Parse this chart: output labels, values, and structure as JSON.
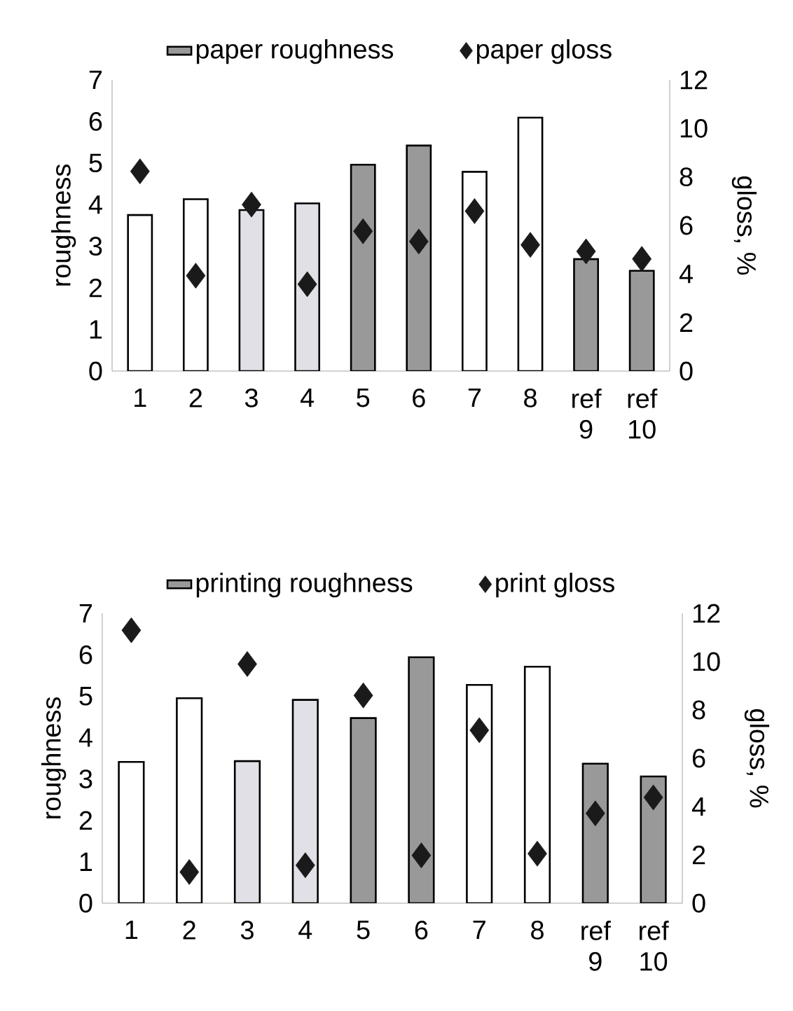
{
  "chart_data": [
    {
      "type": "bar",
      "categories": [
        "1",
        "2",
        "3",
        "4",
        "5",
        "6",
        "7",
        "8",
        "ref 9",
        "ref 10"
      ],
      "ylabel": "roughness",
      "y2label": "gloss, %",
      "ylim": [
        0,
        7
      ],
      "yticks": [
        0,
        1,
        2,
        3,
        4,
        5,
        6,
        7
      ],
      "y2lim": [
        0,
        12
      ],
      "y2ticks": [
        0,
        2,
        4,
        6,
        8,
        10,
        12
      ],
      "legend": "top",
      "series": [
        {
          "name": "paper roughness",
          "type": "bar",
          "values": [
            3.75,
            4.13,
            3.87,
            4.03,
            4.96,
            5.42,
            4.79,
            6.09,
            2.69,
            2.41
          ],
          "colors": [
            "#ffffff",
            "#ffffff",
            "#e0e0e6",
            "#e0e0e6",
            "#999999",
            "#999999",
            "#ffffff",
            "#ffffff",
            "#999999",
            "#999999"
          ]
        },
        {
          "name": "paper gloss",
          "type": "scatter",
          "axis": "y2",
          "marker": "diamond",
          "color": "#1a1a1a",
          "values": [
            8.23,
            3.93,
            6.86,
            3.58,
            5.76,
            5.34,
            6.59,
            5.2,
            4.93,
            4.62
          ]
        }
      ]
    },
    {
      "type": "bar",
      "categories": [
        "1",
        "2",
        "3",
        "4",
        "5",
        "6",
        "7",
        "8",
        "ref 9",
        "ref 10"
      ],
      "ylabel": "roughness",
      "y2label": "gloss, %",
      "ylim": [
        0,
        7
      ],
      "yticks": [
        0,
        1,
        2,
        3,
        4,
        5,
        6,
        7
      ],
      "y2lim": [
        0,
        12
      ],
      "y2ticks": [
        0,
        2,
        4,
        6,
        8,
        10,
        12
      ],
      "legend": "top",
      "series": [
        {
          "name": "printing roughness",
          "type": "bar",
          "values": [
            3.41,
            4.95,
            3.43,
            4.91,
            4.47,
            5.94,
            5.27,
            5.71,
            3.37,
            3.06
          ],
          "colors": [
            "#ffffff",
            "#ffffff",
            "#e0e0e6",
            "#e0e0e6",
            "#999999",
            "#999999",
            "#ffffff",
            "#ffffff",
            "#999999",
            "#999999"
          ]
        },
        {
          "name": "print gloss",
          "type": "scatter",
          "axis": "y2",
          "marker": "diamond",
          "color": "#1a1a1a",
          "values": [
            11.3,
            1.29,
            9.9,
            1.57,
            8.6,
            1.98,
            7.16,
            2.05,
            3.72,
            4.38
          ]
        }
      ]
    }
  ]
}
